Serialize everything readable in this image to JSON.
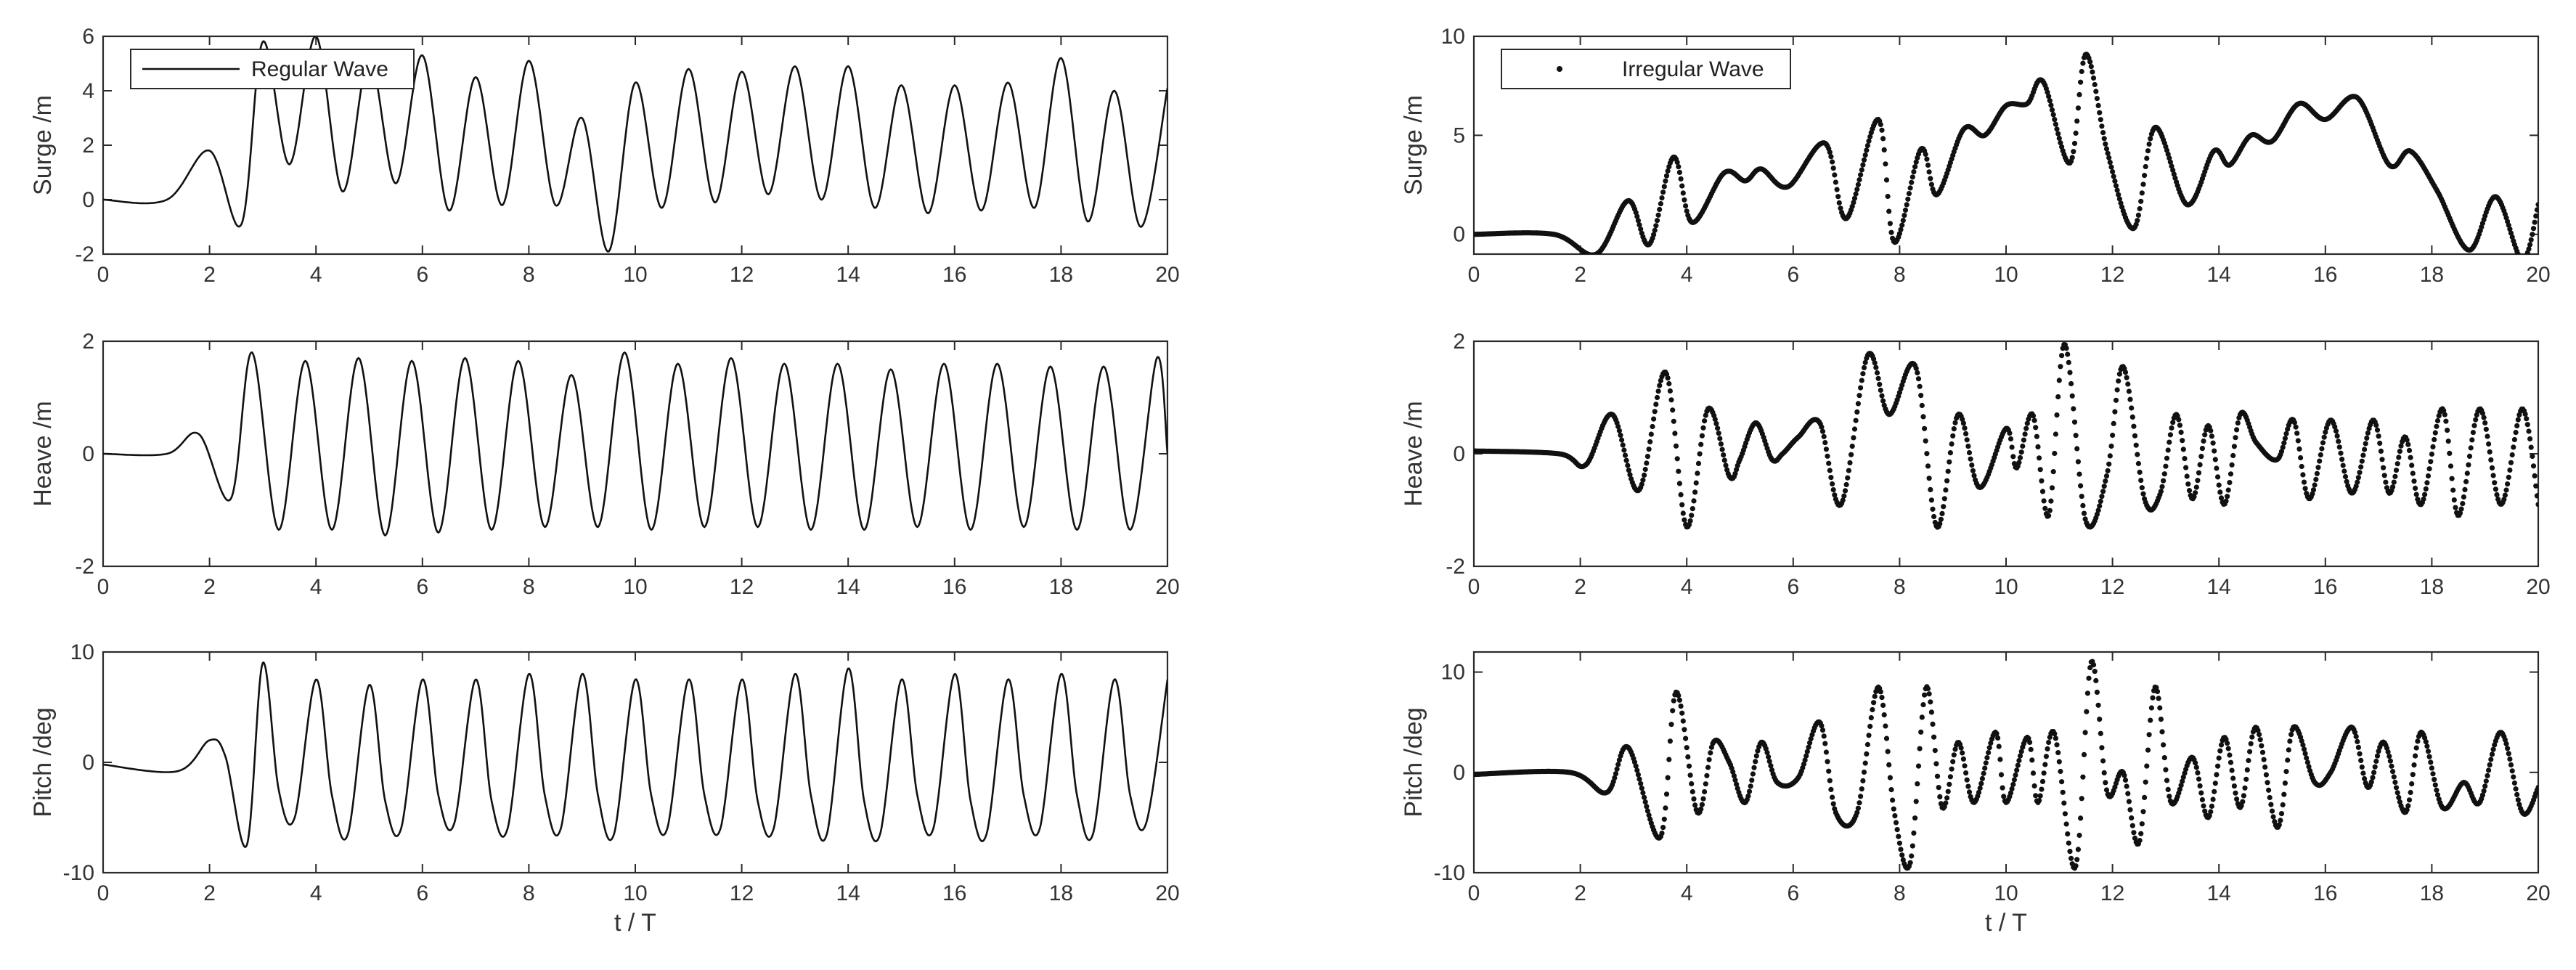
{
  "chart_data": [
    {
      "type": "line",
      "id": "regular-surge",
      "legend": "Regular Wave",
      "ylabel": "Surge /m",
      "xlabel": "",
      "xlim": [
        0,
        20
      ],
      "ylim": [
        -2,
        6
      ],
      "xticks": [
        "0",
        "2",
        "4",
        "6",
        "8",
        "10",
        "12",
        "14",
        "16",
        "18",
        "20"
      ],
      "yticks": [
        "-2",
        "0",
        "2",
        "4",
        "6"
      ],
      "series": [
        {
          "x": [
            0,
            1.2,
            2,
            2.6,
            3,
            3.5,
            4,
            4.5,
            5,
            5.5,
            6,
            6.5,
            7,
            7.5,
            8,
            8.5,
            9,
            9.5,
            10,
            10.5,
            11,
            11.5,
            12,
            12.5,
            13,
            13.5,
            14,
            14.5,
            15,
            15.5,
            16,
            16.5,
            17,
            17.5,
            18,
            18.5,
            19,
            19.5,
            20
          ],
          "y": [
            0,
            0,
            1.8,
            -0.9,
            5.8,
            1.3,
            6,
            0.3,
            5.2,
            0.6,
            5.3,
            -0.4,
            4.5,
            -0.2,
            5.1,
            -0.2,
            3,
            -1.9,
            4.3,
            -0.3,
            4.8,
            -0.1,
            4.7,
            0.2,
            4.9,
            0,
            4.9,
            -0.3,
            4.2,
            -0.5,
            4.2,
            -0.4,
            4.3,
            -0.3,
            5.2,
            -0.8,
            4,
            -1,
            4.1
          ]
        }
      ]
    },
    {
      "type": "line",
      "id": "regular-heave",
      "ylabel": "Heave /m",
      "xlabel": "",
      "xlim": [
        0,
        20
      ],
      "ylim": [
        -2,
        2
      ],
      "xticks": [
        "0",
        "2",
        "4",
        "6",
        "8",
        "10",
        "12",
        "14",
        "16",
        "18",
        "20"
      ],
      "yticks": [
        "-2",
        "0",
        "2"
      ],
      "series": [
        {
          "x": [
            0,
            1.2,
            1.8,
            2.4,
            2.8,
            3.3,
            3.8,
            4.3,
            4.8,
            5.3,
            5.8,
            6.3,
            6.8,
            7.3,
            7.8,
            8.3,
            8.8,
            9.3,
            9.8,
            10.3,
            10.8,
            11.3,
            11.8,
            12.3,
            12.8,
            13.3,
            13.8,
            14.3,
            14.8,
            15.3,
            15.8,
            16.3,
            16.8,
            17.3,
            17.8,
            18.3,
            18.8,
            19.3,
            19.8,
            20
          ],
          "y": [
            0,
            0,
            0.35,
            -0.8,
            1.8,
            -1.35,
            1.65,
            -1.35,
            1.7,
            -1.45,
            1.65,
            -1.4,
            1.7,
            -1.35,
            1.65,
            -1.3,
            1.4,
            -1.3,
            1.8,
            -1.35,
            1.6,
            -1.3,
            1.7,
            -1.3,
            1.6,
            -1.35,
            1.6,
            -1.35,
            1.5,
            -1.3,
            1.6,
            -1.35,
            1.6,
            -1.3,
            1.55,
            -1.35,
            1.55,
            -1.35,
            1.7,
            0
          ]
        }
      ]
    },
    {
      "type": "line",
      "id": "regular-pitch",
      "ylabel": "Pitch /deg",
      "xlabel": "t / T",
      "xlim": [
        0,
        20
      ],
      "ylim": [
        -10,
        10
      ],
      "xticks": [
        "0",
        "2",
        "4",
        "6",
        "8",
        "10",
        "12",
        "14",
        "16",
        "18",
        "20"
      ],
      "yticks": [
        "-10",
        "0",
        "10"
      ],
      "series": [
        {
          "x": [
            0,
            1.4,
            2,
            2.3,
            2.7,
            3,
            3.3,
            3.6,
            4,
            4.3,
            4.6,
            5,
            5.3,
            5.6,
            6,
            6.3,
            6.6,
            7,
            7.3,
            7.6,
            8,
            8.3,
            8.6,
            9,
            9.3,
            9.6,
            10,
            10.3,
            10.6,
            11,
            11.3,
            11.6,
            12,
            12.3,
            12.6,
            13,
            13.3,
            13.6,
            14,
            14.3,
            14.6,
            15,
            15.3,
            15.6,
            16,
            16.3,
            16.6,
            17,
            17.3,
            17.6,
            18,
            18.3,
            18.6,
            19,
            19.3,
            19.6,
            20
          ],
          "y": [
            -0.2,
            -0.8,
            2,
            0.5,
            -7.5,
            9,
            -2.5,
            -5,
            7.5,
            -3,
            -6.5,
            7,
            -3.5,
            -6,
            7.5,
            -3,
            -5.5,
            7.5,
            -3.5,
            -6,
            8,
            -3,
            -6,
            8,
            -3,
            -6.5,
            7.5,
            -3,
            -6,
            7.5,
            -3,
            -6,
            7.5,
            -3.5,
            -6,
            8,
            -3,
            -6.5,
            8.5,
            -3.5,
            -6.5,
            7.5,
            -3,
            -6,
            8,
            -3.5,
            -6.5,
            7.5,
            -3,
            -6,
            8,
            -3,
            -6.5,
            7.5,
            -3,
            -5.5,
            7.5
          ]
        }
      ]
    },
    {
      "type": "scatter",
      "id": "irregular-surge",
      "legend": "Irregular Wave",
      "ylabel": "Surge /m",
      "xlabel": "",
      "xlim": [
        0,
        20
      ],
      "ylim": [
        -1,
        10
      ],
      "xticks": [
        "0",
        "2",
        "4",
        "6",
        "8",
        "10",
        "12",
        "14",
        "16",
        "18",
        "20"
      ],
      "yticks": [
        "0",
        "5",
        "10"
      ],
      "series": [
        {
          "x": [
            0,
            1.5,
            2.3,
            2.9,
            3.3,
            3.75,
            4.1,
            4.7,
            5.1,
            5.4,
            5.9,
            6.6,
            7,
            7.6,
            7.9,
            8.4,
            8.7,
            9.2,
            9.6,
            10,
            10.4,
            10.7,
            11.2,
            11.5,
            11.9,
            12.4,
            12.8,
            13.4,
            13.9,
            14.2,
            14.6,
            15,
            15.5,
            16,
            16.6,
            17.2,
            17.6,
            18.1,
            18.7,
            19.2,
            19.7,
            20
          ],
          "y": [
            0,
            0,
            -1,
            1.7,
            -0.5,
            3.9,
            0.6,
            3.1,
            2.7,
            3.3,
            2.4,
            4.6,
            0.8,
            5.8,
            -0.4,
            4.3,
            2,
            5.3,
            5,
            6.5,
            6.6,
            7.7,
            3.6,
            9.1,
            4.2,
            0.3,
            5.4,
            1.5,
            4.2,
            3.5,
            5,
            4.7,
            6.6,
            5.8,
            6.9,
            3.5,
            4.2,
            2.2,
            -0.8,
            1.9,
            -1.3,
            1.5
          ]
        }
      ]
    },
    {
      "type": "scatter",
      "id": "irregular-heave",
      "ylabel": "Heave /m",
      "xlabel": "",
      "xlim": [
        0,
        20
      ],
      "ylim": [
        -2,
        2
      ],
      "xticks": [
        "0",
        "2",
        "4",
        "6",
        "8",
        "10",
        "12",
        "14",
        "16",
        "18",
        "20"
      ],
      "yticks": [
        "-2",
        "0",
        "2"
      ],
      "series": [
        {
          "x": [
            0,
            1.6,
            2.1,
            2.6,
            3.1,
            3.6,
            4.0,
            4.4,
            4.8,
            5.0,
            5.3,
            5.6,
            5.8,
            6.1,
            6.5,
            6.9,
            7.4,
            7.8,
            8.3,
            8.7,
            9.1,
            9.5,
            10,
            10.2,
            10.5,
            10.8,
            11.1,
            11.5,
            11.9,
            12.2,
            12.6,
            12.9,
            13.2,
            13.5,
            13.8,
            14.1,
            14.4,
            14.7,
            15.1,
            15.4,
            15.7,
            16.1,
            16.5,
            16.9,
            17.2,
            17.5,
            17.8,
            18.2,
            18.5,
            18.9,
            19.3,
            19.7,
            20
          ],
          "y": [
            0.05,
            0,
            -0.2,
            0.7,
            -0.65,
            1.45,
            -1.3,
            0.8,
            -0.4,
            -0.1,
            0.55,
            -0.1,
            0,
            0.3,
            0.55,
            -0.9,
            1.75,
            0.7,
            1.55,
            -1.3,
            0.7,
            -0.6,
            0.45,
            -0.25,
            0.7,
            -1.1,
            1.95,
            -1.2,
            -0.35,
            1.55,
            -0.8,
            -0.7,
            0.7,
            -0.8,
            0.5,
            -0.9,
            0.7,
            0.2,
            -0.1,
            0.6,
            -0.8,
            0.6,
            -0.7,
            0.6,
            -0.7,
            0.3,
            -0.9,
            0.8,
            -1.1,
            0.8,
            -0.9,
            0.8,
            -0.9
          ]
        }
      ]
    },
    {
      "type": "scatter",
      "id": "irregular-pitch",
      "ylabel": "Pitch /deg",
      "xlabel": "t / T",
      "xlim": [
        0,
        20
      ],
      "ylim": [
        -10,
        12
      ],
      "xticks": [
        "0",
        "2",
        "4",
        "6",
        "8",
        "10",
        "12",
        "14",
        "16",
        "18",
        "20"
      ],
      "yticks": [
        "-10",
        "0",
        "10"
      ],
      "series": [
        {
          "x": [
            0,
            1.8,
            2.5,
            2.9,
            3.5,
            3.8,
            4.2,
            4.5,
            4.8,
            5.1,
            5.4,
            5.7,
            6.1,
            6.5,
            6.8,
            7.2,
            7.6,
            7.9,
            8.2,
            8.5,
            8.8,
            9.1,
            9.4,
            9.8,
            10,
            10.4,
            10.6,
            10.9,
            11.3,
            11.6,
            11.9,
            12.2,
            12.5,
            12.8,
            13.1,
            13.5,
            13.8,
            14.1,
            14.4,
            14.7,
            15.1,
            15.4,
            15.8,
            16.1,
            16.5,
            16.8,
            17.1,
            17.5,
            17.8,
            18.2,
            18.6,
            18.9,
            19.3,
            19.7,
            20
          ],
          "y": [
            -0.2,
            0,
            -2,
            2.5,
            -6.5,
            8,
            -4,
            3,
            1,
            -3,
            3,
            -1,
            -0.5,
            5,
            -4,
            -4,
            8.5,
            -4,
            -9,
            8.5,
            -3.5,
            3,
            -3,
            4,
            -3,
            3.5,
            -3,
            4,
            -9.5,
            11,
            -2,
            0,
            -7,
            8.5,
            -3,
            1.5,
            -4.5,
            3.5,
            -3.5,
            4.5,
            -5.5,
            4.5,
            -1,
            0,
            4.5,
            -1.5,
            3,
            -4,
            4,
            -3.5,
            -1,
            -3,
            4,
            -4,
            -1.5
          ]
        }
      ]
    }
  ]
}
